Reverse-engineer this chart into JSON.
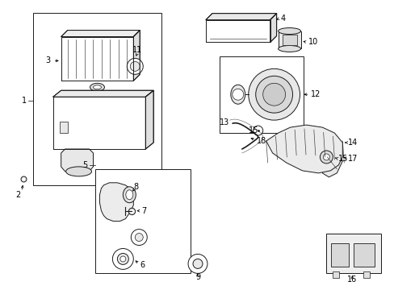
{
  "background_color": "#ffffff",
  "fig_width": 4.89,
  "fig_height": 3.6,
  "dpi": 100,
  "line_color": "#1a1a1a",
  "lw": 0.7,
  "fs": 7.0
}
